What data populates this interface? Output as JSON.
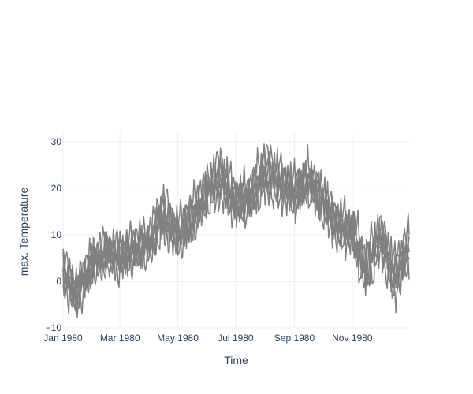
{
  "chart_data": {
    "type": "line",
    "title": "",
    "xlabel": "Time",
    "ylabel": "max. Temperature",
    "x_range": [
      "1980-01-01",
      "1980-12-31"
    ],
    "xticks": [
      {
        "date": "1980-01-01",
        "label": "Jan 1980"
      },
      {
        "date": "1980-03-01",
        "label": "Mar 1980"
      },
      {
        "date": "1980-05-01",
        "label": "May 1980"
      },
      {
        "date": "1980-07-01",
        "label": "Jul 1980"
      },
      {
        "date": "1980-09-01",
        "label": "Sep 1980"
      },
      {
        "date": "1980-11-01",
        "label": "Nov 1980"
      }
    ],
    "ylim": [
      -10,
      32
    ],
    "yticks": [
      -10,
      0,
      10,
      20,
      30
    ],
    "grid": true,
    "legend": "none",
    "line_color": "#808080",
    "series_count": 6,
    "x": [
      "1980-01-01",
      "1980-01-15",
      "1980-02-01",
      "1980-02-15",
      "1980-03-01",
      "1980-03-15",
      "1980-04-01",
      "1980-04-15",
      "1980-05-01",
      "1980-05-15",
      "1980-06-01",
      "1980-06-15",
      "1980-07-01",
      "1980-07-15",
      "1980-08-01",
      "1980-08-15",
      "1980-09-01",
      "1980-09-15",
      "1980-10-01",
      "1980-10-15",
      "1980-11-01",
      "1980-11-15",
      "1980-12-01",
      "1980-12-15",
      "1980-12-31"
    ],
    "series": [
      {
        "values": [
          2.0,
          -3.0,
          4.0,
          6.0,
          5.0,
          7.0,
          8.0,
          14.0,
          10.0,
          13.0,
          19.0,
          22.0,
          17.0,
          18.0,
          23.0,
          21.0,
          19.0,
          22.0,
          17.0,
          12.0,
          11.0,
          2.0,
          9.0,
          1.0,
          7.0
        ]
      },
      {
        "values": [
          3.0,
          -2.0,
          5.0,
          7.0,
          6.0,
          8.0,
          9.0,
          16.0,
          11.0,
          15.0,
          20.0,
          24.0,
          18.0,
          19.0,
          25.0,
          23.0,
          20.0,
          23.0,
          18.0,
          13.0,
          12.0,
          4.0,
          11.0,
          3.0,
          9.0
        ]
      },
      {
        "values": [
          1.0,
          -4.0,
          3.0,
          5.0,
          4.0,
          6.0,
          7.0,
          12.0,
          9.0,
          12.0,
          18.0,
          20.0,
          16.0,
          17.0,
          21.0,
          20.0,
          18.0,
          21.0,
          16.0,
          11.0,
          10.0,
          1.0,
          8.0,
          -1.0,
          6.0
        ]
      },
      {
        "values": [
          4.0,
          -1.0,
          6.0,
          8.0,
          7.0,
          9.0,
          10.0,
          18.0,
          12.0,
          16.0,
          21.0,
          26.0,
          19.0,
          20.0,
          27.0,
          24.0,
          21.0,
          24.0,
          19.0,
          14.0,
          13.0,
          6.0,
          12.0,
          4.0,
          10.0
        ]
      },
      {
        "values": [
          0.0,
          -5.0,
          2.0,
          4.0,
          3.0,
          5.0,
          6.0,
          11.0,
          8.0,
          11.0,
          17.0,
          19.0,
          15.0,
          16.0,
          20.0,
          19.0,
          17.0,
          20.0,
          15.0,
          10.0,
          9.0,
          -1.0,
          7.0,
          -3.0,
          5.0
        ]
      },
      {
        "values": [
          2.0,
          -2.0,
          4.0,
          6.0,
          6.0,
          7.0,
          8.0,
          15.0,
          10.0,
          14.0,
          20.0,
          23.0,
          18.0,
          18.0,
          24.0,
          22.0,
          20.0,
          22.0,
          18.0,
          12.0,
          11.0,
          3.0,
          10.0,
          2.0,
          8.0
        ]
      }
    ]
  }
}
